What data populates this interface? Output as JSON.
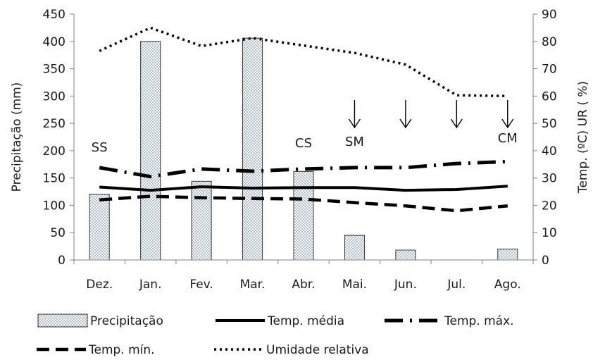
{
  "chart_data": {
    "type": "bar",
    "categories": [
      "Dez.",
      "Jan.",
      "Fev.",
      "Mar.",
      "Abr.",
      "Mai.",
      "Jun.",
      "Jul.",
      "Ago."
    ],
    "ylabel": "Precipitação (mm)",
    "y2label": "Temp. (ºC) UR ( %)",
    "ylim": [
      0,
      450
    ],
    "y2lim": [
      0,
      90
    ],
    "yticks": [
      "0",
      "50",
      "100",
      "150",
      "200",
      "250",
      "300",
      "350",
      "400",
      "450"
    ],
    "y2ticks": [
      "0",
      "10",
      "20",
      "30",
      "40",
      "50",
      "60",
      "70",
      "80",
      "90"
    ],
    "grid": false,
    "legend_position": "bottom",
    "bars": {
      "name": "Precipitação",
      "axis": "left",
      "values": [
        120,
        400,
        144,
        406,
        162,
        45,
        18,
        0,
        20
      ]
    },
    "series": [
      {
        "name": "Temp. média",
        "axis": "right",
        "style": "solid",
        "values": [
          26.7,
          25.5,
          26.8,
          26.3,
          26.5,
          26.5,
          25.5,
          25.8,
          27.0
        ]
      },
      {
        "name": "Temp. máx.",
        "axis": "right",
        "style": "dash-dot",
        "values": [
          33.8,
          30.5,
          33.3,
          32.5,
          33.3,
          33.8,
          33.8,
          35.3,
          36.0
        ]
      },
      {
        "name": "Temp. mín.",
        "axis": "right",
        "style": "dashed",
        "values": [
          22.0,
          23.3,
          22.8,
          22.5,
          22.3,
          21.0,
          19.8,
          18.0,
          19.8
        ]
      },
      {
        "name": "Umidade relativa",
        "axis": "right",
        "style": "dotted",
        "values": [
          76.5,
          85.0,
          78.3,
          81.2,
          78.5,
          75.8,
          71.5,
          60.3,
          60.0
        ]
      }
    ],
    "annotations": [
      {
        "text": "SS",
        "category": "Dez."
      },
      {
        "text": "CS",
        "category": "Abr."
      },
      {
        "text": "SM",
        "category": "Mai."
      },
      {
        "text": "CM",
        "category": "Ago."
      }
    ],
    "arrow_categories": [
      "Mai.",
      "Jun.",
      "Jul.",
      "Ago."
    ]
  }
}
